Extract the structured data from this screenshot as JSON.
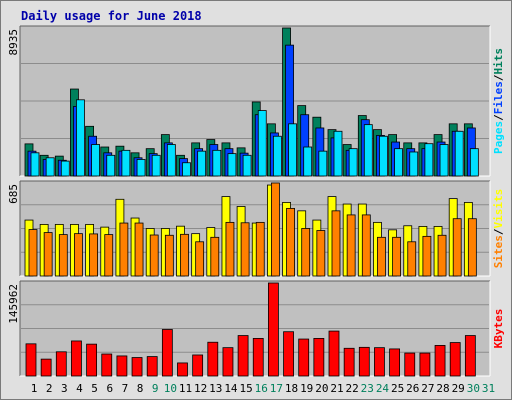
{
  "title": "Daily usage for June 2018",
  "colors": {
    "hits": "#00805c",
    "files": "#0040ff",
    "pages": "#00e0ff",
    "visits": "#ffff00",
    "sites": "#ff8000",
    "kbytes": "#ff0000",
    "weekend_day": "#00805c",
    "weekday": "#000000",
    "separator": "#aaaaaa"
  },
  "right_labels": {
    "top": [
      {
        "text": "Pages",
        "color": "#00e0ff"
      },
      {
        "text": "/",
        "color": "#000000"
      },
      {
        "text": "Files",
        "color": "#0040ff"
      },
      {
        "text": "/",
        "color": "#000000"
      },
      {
        "text": "Hits",
        "color": "#00805c"
      }
    ],
    "middle": [
      {
        "text": "Sites",
        "color": "#ff8000"
      },
      {
        "text": "/",
        "color": "#000000"
      },
      {
        "text": "Visits",
        "color": "#ffff00"
      }
    ],
    "bottom": [
      {
        "text": "KBytes",
        "color": "#ff0000"
      }
    ]
  },
  "chart_data": [
    {
      "type": "bar",
      "panel": "hits-files-pages",
      "ylabel": "8935",
      "ylim": [
        0,
        8935
      ],
      "grid": true,
      "categories": [
        "1",
        "2",
        "3",
        "4",
        "5",
        "6",
        "7",
        "8",
        "9",
        "10",
        "11",
        "12",
        "13",
        "14",
        "15",
        "16",
        "17",
        "18",
        "19",
        "20",
        "21",
        "22",
        "23",
        "24",
        "25",
        "26",
        "27",
        "28",
        "29",
        "30",
        "31"
      ],
      "weekend_days": [
        "9",
        "10",
        "16",
        "17",
        "23",
        "24",
        "30",
        "31"
      ],
      "series": [
        {
          "name": "Hits",
          "values": [
            1940,
            1250,
            1200,
            5250,
            3000,
            1750,
            1800,
            1400,
            1650,
            2500,
            1250,
            2000,
            2200,
            2000,
            1700,
            4470,
            3150,
            8935,
            4250,
            3550,
            2800,
            1900,
            3650,
            2800,
            2500,
            2000,
            2000,
            2500,
            3150,
            3150,
            0
          ]
        },
        {
          "name": "Files",
          "values": [
            1500,
            1000,
            950,
            4200,
            2400,
            1400,
            1500,
            1100,
            1350,
            2000,
            1050,
            1650,
            1900,
            1650,
            1380,
            3700,
            2600,
            7900,
            3700,
            2900,
            2300,
            1550,
            3400,
            2450,
            2050,
            1650,
            1650,
            2050,
            2700,
            2900,
            0
          ]
        },
        {
          "name": "Pages",
          "values": [
            1400,
            1100,
            900,
            4600,
            1900,
            1250,
            1550,
            1000,
            1250,
            1900,
            800,
            1500,
            1550,
            1350,
            1250,
            3950,
            2400,
            3150,
            1750,
            1500,
            2700,
            1650,
            3100,
            2400,
            1650,
            1450,
            1950,
            1900,
            2700,
            1650,
            0
          ]
        }
      ]
    },
    {
      "type": "bar",
      "panel": "visits-sites",
      "ylabel": "685",
      "ylim": [
        0,
        685
      ],
      "grid": true,
      "categories": [
        "1",
        "2",
        "3",
        "4",
        "5",
        "6",
        "7",
        "8",
        "9",
        "10",
        "11",
        "12",
        "13",
        "14",
        "15",
        "16",
        "17",
        "18",
        "19",
        "20",
        "21",
        "22",
        "23",
        "24",
        "25",
        "26",
        "27",
        "28",
        "29",
        "30",
        "31"
      ],
      "series": [
        {
          "name": "Visits",
          "values": [
            412,
            380,
            380,
            380,
            380,
            360,
            565,
            427,
            350,
            350,
            367,
            312,
            357,
            585,
            512,
            390,
            670,
            542,
            480,
            412,
            585,
            530,
            530,
            395,
            340,
            370,
            365,
            365,
            570,
            542,
            0
          ]
        },
        {
          "name": "Sites",
          "values": [
            342,
            320,
            305,
            312,
            310,
            305,
            390,
            390,
            302,
            300,
            307,
            252,
            285,
            395,
            392,
            395,
            685,
            498,
            350,
            335,
            480,
            450,
            450,
            285,
            285,
            252,
            292,
            300,
            422,
            422,
            0
          ]
        }
      ]
    },
    {
      "type": "bar",
      "panel": "kbytes",
      "ylabel": "145962",
      "ylim": [
        0,
        145962
      ],
      "grid": true,
      "categories": [
        "1",
        "2",
        "3",
        "4",
        "5",
        "6",
        "7",
        "8",
        "9",
        "10",
        "11",
        "12",
        "13",
        "14",
        "15",
        "16",
        "17",
        "18",
        "19",
        "20",
        "21",
        "22",
        "23",
        "24",
        "25",
        "26",
        "27",
        "28",
        "29",
        "30",
        "31"
      ],
      "series": [
        {
          "name": "KBytes",
          "values": [
            50500,
            26500,
            38000,
            55000,
            50000,
            34500,
            31500,
            29000,
            30500,
            73000,
            20500,
            33000,
            53000,
            44500,
            63500,
            59000,
            145962,
            69500,
            58000,
            59000,
            70500,
            43500,
            45000,
            44500,
            42500,
            36000,
            36000,
            48000,
            52500,
            63500,
            0
          ]
        }
      ]
    }
  ]
}
